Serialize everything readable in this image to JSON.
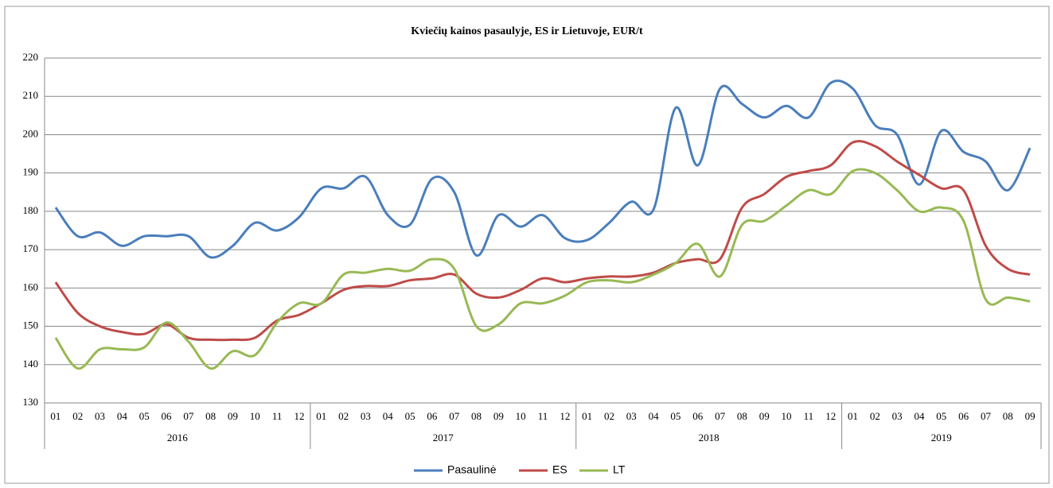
{
  "chart_data": {
    "type": "line",
    "title": "Kviečių kainos pasaulyje, ES ir Lietuvoje, EUR/t",
    "categories": [
      "01",
      "02",
      "03",
      "04",
      "05",
      "06",
      "07",
      "08",
      "09",
      "10",
      "11",
      "12",
      "01",
      "02",
      "03",
      "04",
      "05",
      "06",
      "07",
      "08",
      "09",
      "10",
      "11",
      "12",
      "01",
      "02",
      "03",
      "04",
      "05",
      "06",
      "07",
      "08",
      "09",
      "10",
      "11",
      "12",
      "01",
      "02",
      "03",
      "04",
      "05",
      "06",
      "07",
      "08",
      "09"
    ],
    "groups": [
      {
        "label": "2016",
        "count": 12
      },
      {
        "label": "2017",
        "count": 12
      },
      {
        "label": "2018",
        "count": 12
      },
      {
        "label": "2019",
        "count": 9
      }
    ],
    "series": [
      {
        "name": "Pasaulinė",
        "color": "#4a7ebb",
        "values": [
          181,
          173.5,
          174.5,
          171,
          173.5,
          173.5,
          173.5,
          168,
          171,
          177,
          175,
          178.5,
          186,
          186,
          189,
          179,
          176.5,
          188.5,
          185,
          168.5,
          179,
          176,
          179,
          173,
          172.5,
          177,
          182.5,
          180.5,
          207,
          192,
          212,
          208,
          204.5,
          207.5,
          204.5,
          213.5,
          212,
          202.5,
          200,
          187,
          201,
          195.5,
          193,
          185.5,
          196.5
        ]
      },
      {
        "name": "ES",
        "color": "#be4b48",
        "values": [
          161.5,
          153.5,
          150,
          148.5,
          148,
          150.5,
          147,
          146.5,
          146.5,
          147,
          151.5,
          153,
          156,
          159.5,
          160.5,
          160.5,
          162,
          162.5,
          163.5,
          158.5,
          157.5,
          159.5,
          162.5,
          161.5,
          162.5,
          163,
          163,
          164,
          166.5,
          167.5,
          167.5,
          181,
          184.5,
          189,
          190.5,
          192,
          198,
          197,
          193,
          189.5,
          186,
          185.5,
          171,
          165,
          163.5
        ]
      },
      {
        "name": "LT",
        "color": "#98b954",
        "values": [
          147,
          139,
          144,
          144,
          144.5,
          151,
          146,
          139,
          143.5,
          142.5,
          151,
          156,
          156,
          163.5,
          164,
          165,
          164.5,
          167.5,
          165,
          150,
          150.5,
          156,
          156,
          158,
          161.5,
          162,
          161.5,
          163.5,
          166.5,
          171.5,
          163,
          176.5,
          177.5,
          181.5,
          185.5,
          184.5,
          190.5,
          190,
          185.5,
          180,
          181,
          177.5,
          157,
          157.5,
          156.5
        ]
      }
    ],
    "ylim": [
      130,
      220
    ],
    "yticks": [
      130,
      140,
      150,
      160,
      170,
      180,
      190,
      200,
      210,
      220
    ],
    "grid": true,
    "legend": "bottom"
  }
}
